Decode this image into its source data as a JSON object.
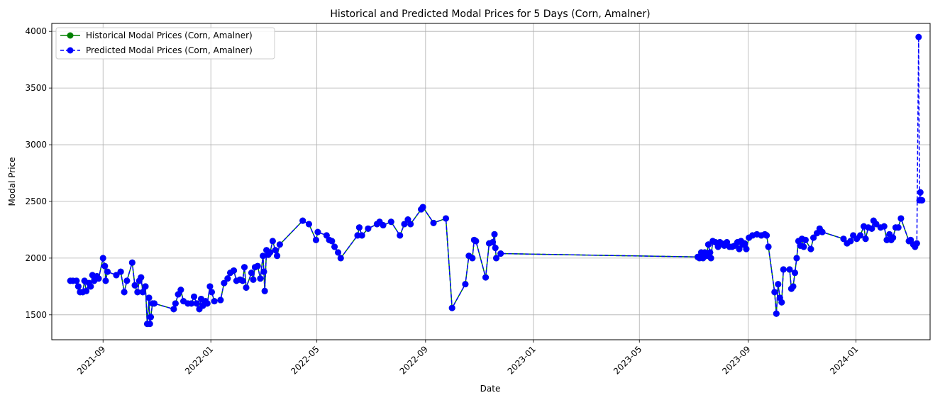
{
  "chart_data": {
    "type": "line",
    "title": "Historical and Predicted Modal Prices for 5 Days (Corn, Amalner)",
    "xlabel": "Date",
    "ylabel": "Modal Price",
    "grid": true,
    "legend_position": "top-left",
    "xlim": [
      "2021-07-05",
      "2024-03-25"
    ],
    "ylim": [
      1280,
      4070
    ],
    "x_ticks": [
      "2021-09",
      "2022-01",
      "2022-05",
      "2022-09",
      "2023-01",
      "2023-05",
      "2023-09",
      "2024-01"
    ],
    "y_ticks": [
      1500,
      2000,
      2500,
      3000,
      3500,
      4000
    ],
    "series": [
      {
        "name": "Historical Modal Prices (Corn, Amalner)",
        "color": "#008000",
        "line_style": "solid",
        "marker": "circle",
        "points": [
          [
            "2021-07-26",
            1800
          ],
          [
            "2021-07-29",
            1800
          ],
          [
            "2021-08-02",
            1800
          ],
          [
            "2021-08-04",
            1750
          ],
          [
            "2021-08-06",
            1700
          ],
          [
            "2021-08-09",
            1700
          ],
          [
            "2021-08-11",
            1800
          ],
          [
            "2021-08-13",
            1710
          ],
          [
            "2021-08-16",
            1780
          ],
          [
            "2021-08-18",
            1750
          ],
          [
            "2021-08-20",
            1850
          ],
          [
            "2021-08-22",
            1800
          ],
          [
            "2021-08-25",
            1840
          ],
          [
            "2021-08-27",
            1820
          ],
          [
            "2021-09-01",
            2000
          ],
          [
            "2021-09-03",
            1930
          ],
          [
            "2021-09-04",
            1800
          ],
          [
            "2021-09-06",
            1880
          ],
          [
            "2021-09-16",
            1850
          ],
          [
            "2021-09-21",
            1880
          ],
          [
            "2021-09-25",
            1700
          ],
          [
            "2021-09-28",
            1800
          ],
          [
            "2021-10-04",
            1960
          ],
          [
            "2021-10-07",
            1760
          ],
          [
            "2021-10-10",
            1700
          ],
          [
            "2021-10-12",
            1800
          ],
          [
            "2021-10-14",
            1830
          ],
          [
            "2021-10-16",
            1700
          ],
          [
            "2021-10-19",
            1750
          ],
          [
            "2021-10-21",
            1420
          ],
          [
            "2021-10-23",
            1650
          ],
          [
            "2021-10-24",
            1420
          ],
          [
            "2021-10-25",
            1480
          ],
          [
            "2021-10-27",
            1600
          ],
          [
            "2021-10-29",
            1600
          ],
          [
            "2021-11-20",
            1550
          ],
          [
            "2021-11-22",
            1600
          ],
          [
            "2021-11-25",
            1680
          ],
          [
            "2021-11-28",
            1720
          ],
          [
            "2021-12-01",
            1620
          ],
          [
            "2021-12-06",
            1600
          ],
          [
            "2021-12-10",
            1600
          ],
          [
            "2021-12-13",
            1660
          ],
          [
            "2021-12-16",
            1600
          ],
          [
            "2021-12-19",
            1550
          ],
          [
            "2021-12-21",
            1640
          ],
          [
            "2021-12-23",
            1580
          ],
          [
            "2021-12-26",
            1620
          ],
          [
            "2021-12-28",
            1600
          ],
          [
            "2021-12-31",
            1750
          ],
          [
            "2022-01-02",
            1700
          ],
          [
            "2022-01-05",
            1620
          ],
          [
            "2022-01-12",
            1630
          ],
          [
            "2022-01-16",
            1780
          ],
          [
            "2022-01-20",
            1820
          ],
          [
            "2022-01-23",
            1870
          ],
          [
            "2022-01-27",
            1890
          ],
          [
            "2022-01-30",
            1800
          ],
          [
            "2022-02-03",
            1810
          ],
          [
            "2022-02-06",
            1800
          ],
          [
            "2022-02-08",
            1920
          ],
          [
            "2022-02-10",
            1740
          ],
          [
            "2022-02-16",
            1870
          ],
          [
            "2022-02-18",
            1810
          ],
          [
            "2022-02-20",
            1920
          ],
          [
            "2022-02-23",
            1930
          ],
          [
            "2022-02-26",
            1820
          ],
          [
            "2022-03-01",
            2020
          ],
          [
            "2022-03-02",
            1880
          ],
          [
            "2022-03-03",
            1710
          ],
          [
            "2022-03-05",
            2070
          ],
          [
            "2022-03-07",
            2030
          ],
          [
            "2022-03-09",
            2050
          ],
          [
            "2022-03-12",
            2150
          ],
          [
            "2022-03-15",
            2070
          ],
          [
            "2022-03-17",
            2020
          ],
          [
            "2022-03-20",
            2120
          ],
          [
            "2022-04-15",
            2330
          ],
          [
            "2022-04-22",
            2300
          ],
          [
            "2022-04-30",
            2160
          ],
          [
            "2022-05-02",
            2230
          ],
          [
            "2022-05-12",
            2200
          ],
          [
            "2022-05-15",
            2160
          ],
          [
            "2022-05-18",
            2150
          ],
          [
            "2022-05-21",
            2100
          ],
          [
            "2022-05-25",
            2050
          ],
          [
            "2022-05-28",
            2000
          ],
          [
            "2022-06-16",
            2200
          ],
          [
            "2022-06-18",
            2270
          ],
          [
            "2022-06-21",
            2200
          ],
          [
            "2022-06-28",
            2260
          ],
          [
            "2022-07-08",
            2300
          ],
          [
            "2022-07-11",
            2320
          ],
          [
            "2022-07-15",
            2290
          ],
          [
            "2022-07-24",
            2320
          ],
          [
            "2022-08-03",
            2200
          ],
          [
            "2022-08-08",
            2300
          ],
          [
            "2022-08-12",
            2340
          ],
          [
            "2022-08-15",
            2300
          ],
          [
            "2022-08-27",
            2430
          ],
          [
            "2022-08-29",
            2450
          ],
          [
            "2022-09-10",
            2310
          ],
          [
            "2022-09-24",
            2350
          ],
          [
            "2022-10-01",
            1560
          ],
          [
            "2022-10-16",
            1770
          ],
          [
            "2022-10-20",
            2020
          ],
          [
            "2022-10-24",
            2000
          ],
          [
            "2022-10-26",
            2160
          ],
          [
            "2022-10-28",
            2150
          ],
          [
            "2022-11-08",
            1830
          ],
          [
            "2022-11-12",
            2130
          ],
          [
            "2022-11-16",
            2140
          ],
          [
            "2022-11-18",
            2210
          ],
          [
            "2022-11-19",
            2090
          ],
          [
            "2022-11-20",
            2000
          ],
          [
            "2022-11-25",
            2040
          ],
          [
            "2023-07-06",
            2010
          ],
          [
            "2023-07-08",
            2000
          ],
          [
            "2023-07-10",
            2050
          ],
          [
            "2023-07-12",
            2000
          ],
          [
            "2023-07-14",
            2050
          ],
          [
            "2023-07-16",
            2020
          ],
          [
            "2023-07-18",
            2120
          ],
          [
            "2023-07-20",
            2050
          ],
          [
            "2023-07-21",
            2000
          ],
          [
            "2023-07-23",
            2150
          ],
          [
            "2023-07-26",
            2140
          ],
          [
            "2023-07-29",
            2100
          ],
          [
            "2023-07-31",
            2140
          ],
          [
            "2023-08-02",
            2130
          ],
          [
            "2023-08-05",
            2110
          ],
          [
            "2023-08-08",
            2140
          ],
          [
            "2023-08-11",
            2100
          ],
          [
            "2023-08-14",
            2100
          ],
          [
            "2023-08-17",
            2110
          ],
          [
            "2023-08-20",
            2140
          ],
          [
            "2023-08-22",
            2080
          ],
          [
            "2023-08-24",
            2150
          ],
          [
            "2023-08-26",
            2120
          ],
          [
            "2023-08-28",
            2130
          ],
          [
            "2023-08-30",
            2080
          ],
          [
            "2023-09-02",
            2180
          ],
          [
            "2023-09-06",
            2200
          ],
          [
            "2023-09-11",
            2210
          ],
          [
            "2023-09-16",
            2200
          ],
          [
            "2023-09-20",
            2210
          ],
          [
            "2023-09-22",
            2200
          ],
          [
            "2023-09-24",
            2100
          ],
          [
            "2023-10-01",
            1700
          ],
          [
            "2023-10-03",
            1510
          ],
          [
            "2023-10-05",
            1770
          ],
          [
            "2023-10-07",
            1650
          ],
          [
            "2023-10-09",
            1610
          ],
          [
            "2023-10-11",
            1900
          ],
          [
            "2023-10-18",
            1900
          ],
          [
            "2023-10-20",
            1730
          ],
          [
            "2023-10-22",
            1750
          ],
          [
            "2023-10-24",
            1870
          ],
          [
            "2023-10-26",
            2000
          ],
          [
            "2023-10-28",
            2150
          ],
          [
            "2023-10-30",
            2110
          ],
          [
            "2023-11-01",
            2170
          ],
          [
            "2023-11-03",
            2100
          ],
          [
            "2023-11-05",
            2160
          ],
          [
            "2023-11-11",
            2080
          ],
          [
            "2023-11-14",
            2180
          ],
          [
            "2023-11-18",
            2220
          ],
          [
            "2023-11-21",
            2260
          ],
          [
            "2023-11-24",
            2230
          ],
          [
            "2023-12-18",
            2170
          ],
          [
            "2023-12-22",
            2130
          ],
          [
            "2023-12-26",
            2150
          ],
          [
            "2023-12-29",
            2200
          ],
          [
            "2024-01-02",
            2170
          ],
          [
            "2024-01-06",
            2200
          ],
          [
            "2024-01-10",
            2280
          ],
          [
            "2024-01-12",
            2170
          ],
          [
            "2024-01-15",
            2270
          ],
          [
            "2024-01-19",
            2260
          ],
          [
            "2024-01-21",
            2330
          ],
          [
            "2024-01-24",
            2300
          ],
          [
            "2024-01-29",
            2270
          ],
          [
            "2024-02-02",
            2280
          ],
          [
            "2024-02-05",
            2160
          ],
          [
            "2024-02-08",
            2210
          ],
          [
            "2024-02-10",
            2160
          ],
          [
            "2024-02-12",
            2180
          ],
          [
            "2024-02-15",
            2270
          ],
          [
            "2024-02-18",
            2270
          ],
          [
            "2024-02-21",
            2350
          ],
          [
            "2024-03-01",
            2150
          ],
          [
            "2024-03-03",
            2160
          ],
          [
            "2024-03-06",
            2120
          ],
          [
            "2024-03-08",
            2100
          ],
          [
            "2024-03-10",
            2130
          ]
        ]
      },
      {
        "name": "Predicted Modal Prices (Corn, Amalner)",
        "color": "#0000ff",
        "line_style": "dashed",
        "marker": "circle",
        "overlays_historical": true,
        "points": [
          [
            "2024-03-12",
            3950
          ],
          [
            "2024-03-13",
            2510
          ],
          [
            "2024-03-14",
            2580
          ],
          [
            "2024-03-15",
            2510
          ],
          [
            "2024-03-16",
            2510
          ]
        ]
      }
    ]
  }
}
